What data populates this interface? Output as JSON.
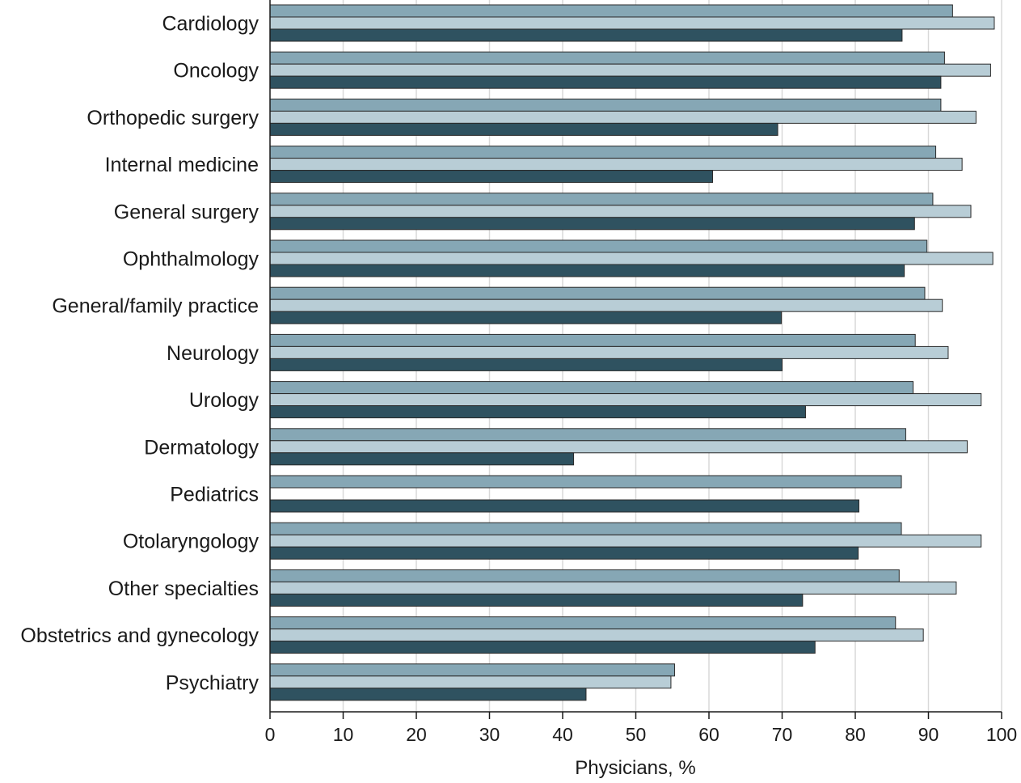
{
  "chart_data": {
    "type": "bar",
    "orientation": "horizontal",
    "categories": [
      "Cardiology",
      "Oncology",
      "Orthopedic surgery",
      "Internal medicine",
      "General surgery",
      "Ophthalmology",
      "General/family practice",
      "Neurology",
      "Urology",
      "Dermatology",
      "Pediatrics",
      "Otolaryngology",
      "Other specialties",
      "Obstetrics and gynecology",
      "Psychiatry"
    ],
    "series": [
      {
        "color": "#86a7b5",
        "values": [
          93.3,
          92.2,
          91.7,
          91.0,
          90.6,
          89.8,
          89.5,
          88.2,
          87.9,
          86.9,
          86.3,
          86.3,
          86.0,
          85.5,
          55.3
        ]
      },
      {
        "color": "#b8cdd6",
        "values": [
          99.0,
          98.5,
          96.5,
          94.6,
          95.8,
          98.8,
          91.9,
          92.7,
          97.2,
          95.3,
          null,
          97.2,
          93.8,
          89.3,
          54.8
        ]
      },
      {
        "color": "#2f5260",
        "values": [
          86.4,
          91.7,
          69.4,
          60.5,
          88.1,
          86.7,
          69.9,
          70.0,
          73.2,
          41.5,
          80.5,
          80.4,
          72.8,
          74.5,
          43.2
        ]
      }
    ],
    "xlim": [
      0,
      100
    ],
    "x_ticks": [
      0,
      10,
      20,
      30,
      40,
      50,
      60,
      70,
      80,
      90,
      100
    ],
    "xlabel": "Physicians, %",
    "ylabel": "",
    "title": "",
    "grid": "vertical",
    "legend": "none"
  }
}
